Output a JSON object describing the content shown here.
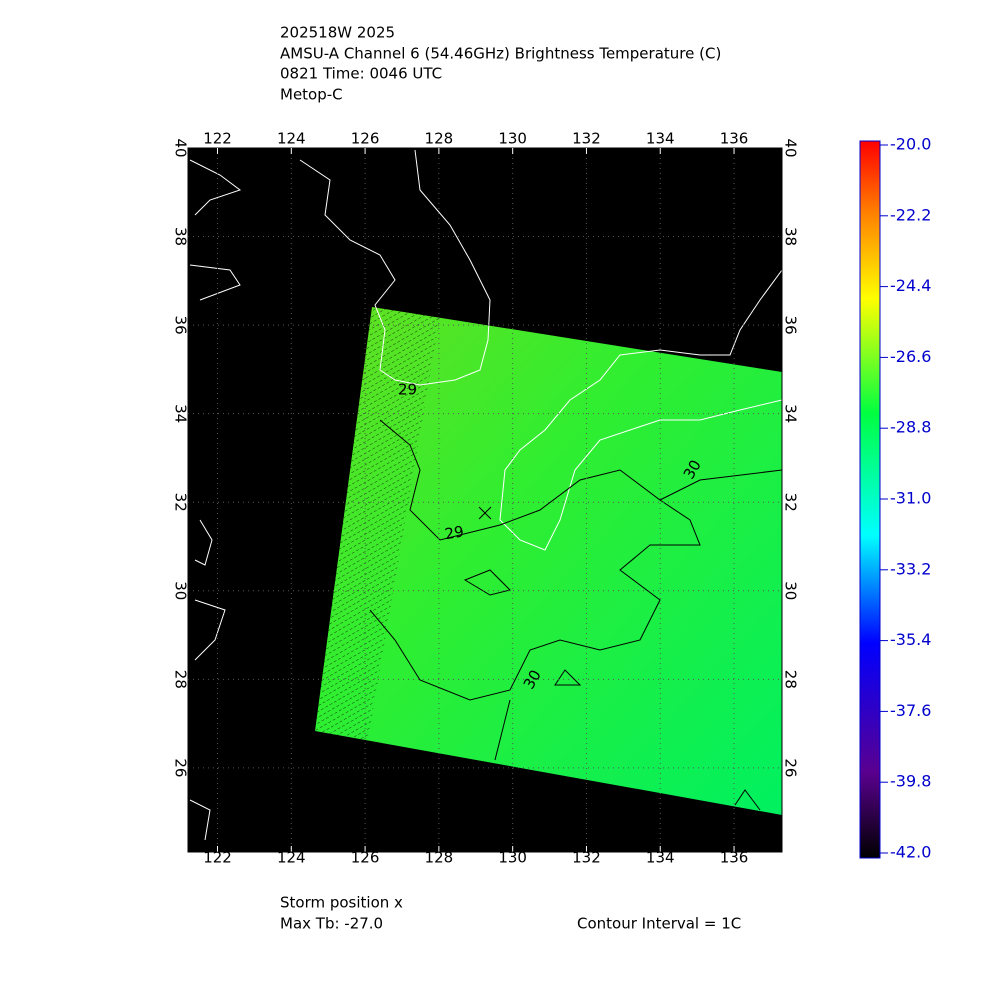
{
  "header": {
    "lines": [
      "202518W 2025",
      "AMSU-A Channel 6 (54.46GHz) Brightness Temperature (C)",
      "0821 Time: 0046 UTC",
      "Metop-C"
    ]
  },
  "map": {
    "lon_range": [
      121.2,
      137.3
    ],
    "lat_range": [
      24.1,
      40
    ],
    "lon_ticks": [
      122,
      124,
      126,
      128,
      130,
      132,
      134,
      136
    ],
    "lat_ticks": [
      26,
      28,
      30,
      32,
      34,
      36,
      38,
      40
    ],
    "contour_labels": [
      "29",
      "30",
      "30",
      "29"
    ]
  },
  "colorbar": {
    "range": [
      -42,
      -20
    ],
    "ticks": [
      {
        "value": -20,
        "label": "-20.0"
      },
      {
        "value": -22.2,
        "label": "-22.2"
      },
      {
        "value": -24.4,
        "label": "-24.4"
      },
      {
        "value": -26.6,
        "label": "-26.6"
      },
      {
        "value": -28.8,
        "label": "-28.8"
      },
      {
        "value": -31,
        "label": "-31.0"
      },
      {
        "value": -33.2,
        "label": "-33.2"
      },
      {
        "value": -35.4,
        "label": "-35.4"
      },
      {
        "value": -37.6,
        "label": "-37.6"
      },
      {
        "value": -39.8,
        "label": "-39.8"
      },
      {
        "value": -42,
        "label": "-42.0"
      }
    ]
  },
  "footer": {
    "storm": "Storm position x",
    "max_tb": "Max Tb: -27.0",
    "contour": "Contour Interval = 1C"
  }
}
